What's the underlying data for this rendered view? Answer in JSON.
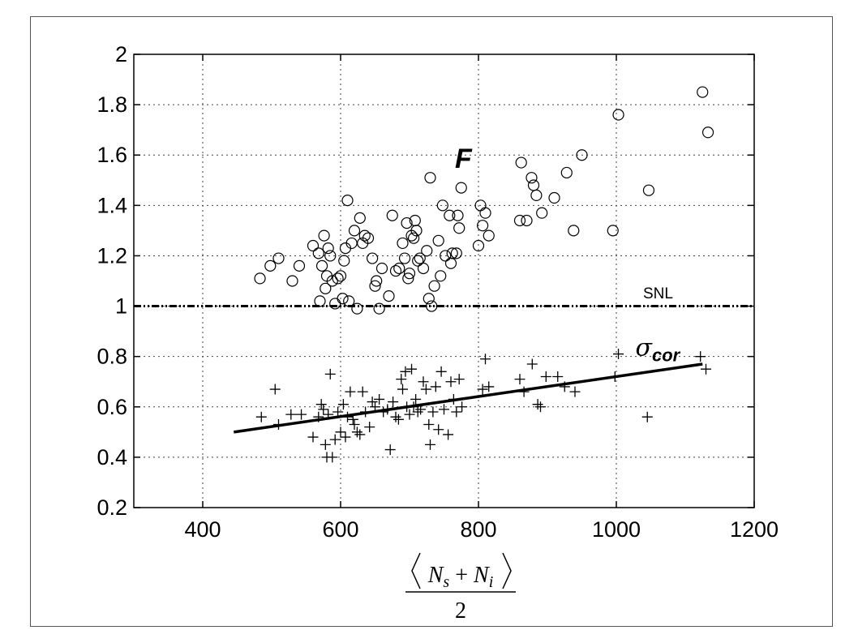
{
  "chart_data": {
    "type": "scatter",
    "title": "",
    "xlim": [
      300,
      1200
    ],
    "ylim": [
      0.2,
      2
    ],
    "xticks": [
      400,
      600,
      800,
      1000,
      1200
    ],
    "yticks": [
      0.2,
      0.4,
      0.6,
      0.8,
      1,
      1.2,
      1.4,
      1.6,
      1.8,
      2
    ],
    "xtick_labels": [
      "400",
      "600",
      "800",
      "1000",
      "1200"
    ],
    "ytick_labels": [
      "0.2",
      "0.4",
      "0.6",
      "0.8",
      "1",
      "1.2",
      "1.4",
      "1.6",
      "1.8",
      "2"
    ],
    "xlabel": {
      "numerator": "⟨N_s + N_i⟩",
      "denominator": "2"
    },
    "grid": true,
    "series": [
      {
        "name": "F",
        "marker": "circle",
        "points": [
          [
            483,
            1.11
          ],
          [
            498,
            1.16
          ],
          [
            510,
            1.19
          ],
          [
            530,
            1.1
          ],
          [
            540,
            1.16
          ],
          [
            560,
            1.24
          ],
          [
            568,
            1.21
          ],
          [
            570,
            1.02
          ],
          [
            573,
            1.16
          ],
          [
            576,
            1.28
          ],
          [
            578,
            1.07
          ],
          [
            580,
            1.12
          ],
          [
            582,
            1.23
          ],
          [
            585,
            1.2
          ],
          [
            588,
            1.1
          ],
          [
            592,
            1.01
          ],
          [
            596,
            1.11
          ],
          [
            600,
            1.12
          ],
          [
            603,
            1.03
          ],
          [
            605,
            1.18
          ],
          [
            607,
            1.23
          ],
          [
            610,
            1.42
          ],
          [
            612,
            1.02
          ],
          [
            616,
            1.25
          ],
          [
            620,
            1.3
          ],
          [
            624,
            0.99
          ],
          [
            628,
            1.35
          ],
          [
            632,
            1.25
          ],
          [
            635,
            1.28
          ],
          [
            640,
            1.27
          ],
          [
            646,
            1.19
          ],
          [
            650,
            1.08
          ],
          [
            652,
            1.1
          ],
          [
            656,
            0.99
          ],
          [
            660,
            1.15
          ],
          [
            670,
            1.04
          ],
          [
            675,
            1.36
          ],
          [
            680,
            1.14
          ],
          [
            685,
            1.15
          ],
          [
            690,
            1.25
          ],
          [
            693,
            1.19
          ],
          [
            696,
            1.33
          ],
          [
            698,
            1.11
          ],
          [
            700,
            1.13
          ],
          [
            703,
            1.28
          ],
          [
            706,
            1.27
          ],
          [
            708,
            1.34
          ],
          [
            710,
            1.3
          ],
          [
            712,
            1.18
          ],
          [
            715,
            1.19
          ],
          [
            720,
            1.15
          ],
          [
            725,
            1.22
          ],
          [
            728,
            1.03
          ],
          [
            730,
            1.51
          ],
          [
            732,
            1.0
          ],
          [
            736,
            1.08
          ],
          [
            742,
            1.26
          ],
          [
            745,
            1.12
          ],
          [
            748,
            1.4
          ],
          [
            752,
            1.2
          ],
          [
            758,
            1.36
          ],
          [
            760,
            1.17
          ],
          [
            762,
            1.21
          ],
          [
            768,
            1.21
          ],
          [
            770,
            1.36
          ],
          [
            772,
            1.31
          ],
          [
            775,
            1.47
          ],
          [
            800,
            1.24
          ],
          [
            803,
            1.4
          ],
          [
            806,
            1.32
          ],
          [
            810,
            1.37
          ],
          [
            815,
            1.28
          ],
          [
            860,
            1.34
          ],
          [
            862,
            1.57
          ],
          [
            870,
            1.34
          ],
          [
            877,
            1.51
          ],
          [
            880,
            1.48
          ],
          [
            884,
            1.44
          ],
          [
            892,
            1.37
          ],
          [
            910,
            1.43
          ],
          [
            928,
            1.53
          ],
          [
            938,
            1.3
          ],
          [
            950,
            1.6
          ],
          [
            995,
            1.3
          ],
          [
            1003,
            1.76
          ],
          [
            1047,
            1.46
          ],
          [
            1125,
            1.85
          ],
          [
            1133,
            1.69
          ]
        ]
      },
      {
        "name": "σ_cor",
        "marker": "plus",
        "points": [
          [
            485,
            0.56
          ],
          [
            505,
            0.67
          ],
          [
            510,
            0.53
          ],
          [
            528,
            0.57
          ],
          [
            543,
            0.57
          ],
          [
            560,
            0.48
          ],
          [
            568,
            0.56
          ],
          [
            572,
            0.61
          ],
          [
            575,
            0.59
          ],
          [
            578,
            0.45
          ],
          [
            580,
            0.4
          ],
          [
            582,
            0.57
          ],
          [
            585,
            0.73
          ],
          [
            588,
            0.4
          ],
          [
            592,
            0.47
          ],
          [
            596,
            0.58
          ],
          [
            600,
            0.5
          ],
          [
            604,
            0.61
          ],
          [
            607,
            0.48
          ],
          [
            610,
            0.56
          ],
          [
            614,
            0.66
          ],
          [
            618,
            0.55
          ],
          [
            620,
            0.53
          ],
          [
            624,
            0.5
          ],
          [
            628,
            0.49
          ],
          [
            632,
            0.66
          ],
          [
            636,
            0.58
          ],
          [
            642,
            0.52
          ],
          [
            646,
            0.62
          ],
          [
            650,
            0.6
          ],
          [
            656,
            0.63
          ],
          [
            662,
            0.58
          ],
          [
            668,
            0.59
          ],
          [
            672,
            0.43
          ],
          [
            676,
            0.62
          ],
          [
            680,
            0.56
          ],
          [
            684,
            0.55
          ],
          [
            688,
            0.71
          ],
          [
            690,
            0.67
          ],
          [
            694,
            0.74
          ],
          [
            696,
            0.6
          ],
          [
            700,
            0.57
          ],
          [
            703,
            0.75
          ],
          [
            706,
            0.6
          ],
          [
            709,
            0.63
          ],
          [
            712,
            0.58
          ],
          [
            716,
            0.59
          ],
          [
            720,
            0.7
          ],
          [
            724,
            0.67
          ],
          [
            728,
            0.53
          ],
          [
            730,
            0.45
          ],
          [
            734,
            0.58
          ],
          [
            738,
            0.68
          ],
          [
            742,
            0.51
          ],
          [
            746,
            0.74
          ],
          [
            750,
            0.59
          ],
          [
            756,
            0.49
          ],
          [
            760,
            0.7
          ],
          [
            764,
            0.63
          ],
          [
            768,
            0.58
          ],
          [
            772,
            0.71
          ],
          [
            776,
            0.6
          ],
          [
            806,
            0.67
          ],
          [
            810,
            0.79
          ],
          [
            815,
            0.68
          ],
          [
            860,
            0.71
          ],
          [
            866,
            0.66
          ],
          [
            878,
            0.77
          ],
          [
            886,
            0.61
          ],
          [
            890,
            0.6
          ],
          [
            898,
            0.72
          ],
          [
            915,
            0.72
          ],
          [
            925,
            0.68
          ],
          [
            940,
            0.66
          ],
          [
            998,
            0.72
          ],
          [
            1003,
            0.81
          ],
          [
            1045,
            0.56
          ],
          [
            1122,
            0.8
          ],
          [
            1130,
            0.75
          ]
        ],
        "fit_line": [
          [
            445,
            0.5
          ],
          [
            1125,
            0.77
          ]
        ]
      },
      {
        "name": "SNL",
        "type": "reference_line",
        "y": 1.0
      }
    ],
    "annotations": [
      {
        "text": "F",
        "x": 780,
        "y": 1.6
      },
      {
        "text": "SNL",
        "x": 1060,
        "y": 1.05
      },
      {
        "text": "σ",
        "subscript": "cor",
        "x": 1030,
        "y": 0.83
      }
    ]
  }
}
